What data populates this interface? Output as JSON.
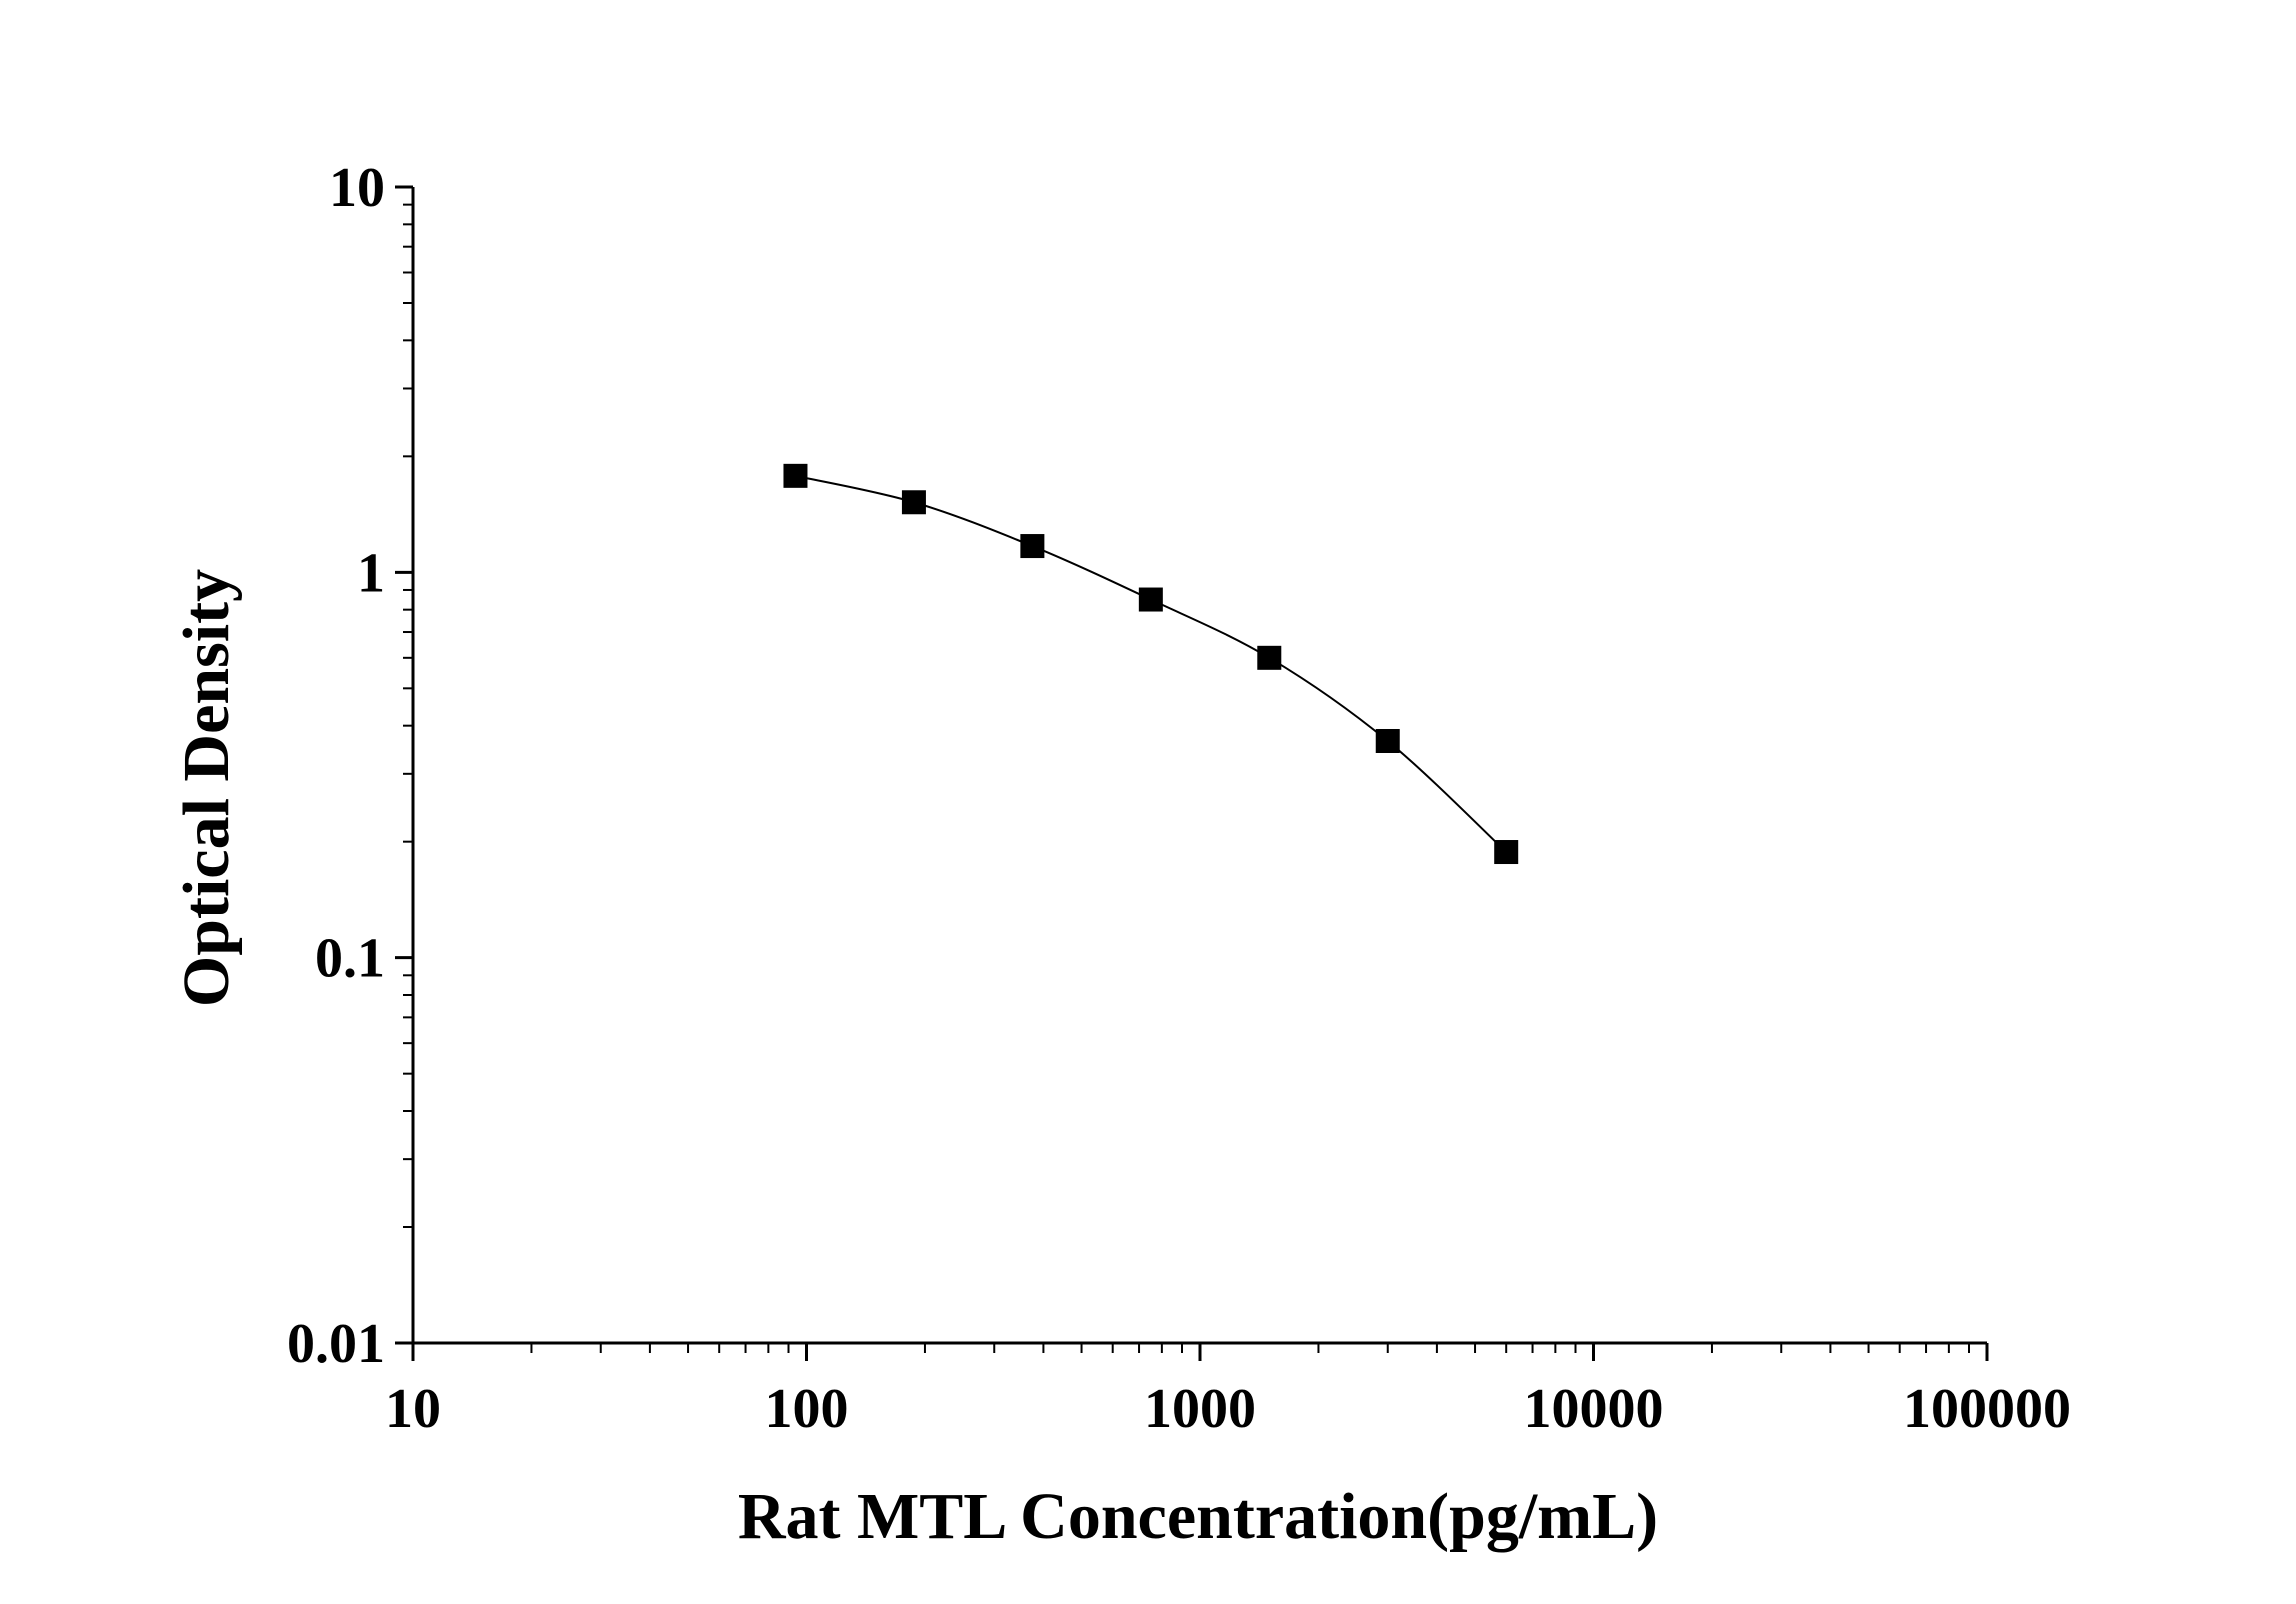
{
  "chart_data": {
    "type": "scatter",
    "title": "",
    "xlabel": "Rat MTL Concentration(pg/mL)",
    "ylabel": "Optical Density",
    "xscale": "log",
    "yscale": "log",
    "xlim": [
      10,
      100000
    ],
    "ylim": [
      0.01,
      10
    ],
    "x_tick_labels": [
      "10",
      "100",
      "1000",
      "10000",
      "100000"
    ],
    "y_tick_labels": [
      "0.01",
      "0.1",
      "1",
      "10"
    ],
    "grid": false,
    "legend": "none",
    "series": [
      {
        "x": [
          93.75,
          187.5,
          375,
          750,
          1500,
          3000,
          6000
        ],
        "y": [
          1.78,
          1.52,
          1.17,
          0.85,
          0.6,
          0.365,
          0.188
        ],
        "marker": "square",
        "connected": true,
        "color": "#000000"
      }
    ]
  }
}
